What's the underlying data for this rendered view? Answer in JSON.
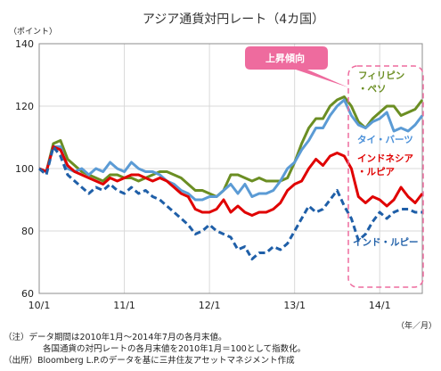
{
  "chart_data": {
    "type": "line",
    "title": "アジア通貨対円レート（4カ国）",
    "ylabel": "（ポイント）",
    "xlabel": "（年／月）",
    "ylim": [
      60,
      140
    ],
    "yticks": [
      60,
      80,
      100,
      120,
      140
    ],
    "xticks": [
      "10/1",
      "11/1",
      "12/1",
      "13/1",
      "14/1"
    ],
    "xtick_index": [
      0,
      12,
      24,
      36,
      48
    ],
    "x_count": 55,
    "grid": true,
    "callout": "上昇傾向",
    "series": [
      {
        "name": "フィリピン・ペソ",
        "label_lines": [
          "フィリピン",
          "・ペソ"
        ],
        "color": "#6b8e23",
        "style": "solid",
        "values": [
          100,
          99,
          108,
          109,
          103,
          101,
          99,
          98,
          97,
          96,
          98,
          98,
          97,
          97,
          96,
          97,
          98,
          99,
          99,
          98,
          97,
          95,
          93,
          93,
          92,
          91,
          93,
          98,
          98,
          97,
          96,
          97,
          96,
          96,
          96,
          97,
          102,
          108,
          113,
          116,
          116,
          120,
          122,
          123,
          120,
          115,
          113,
          116,
          118,
          120,
          120,
          117,
          118,
          119,
          122
        ]
      },
      {
        "name": "タイ・バーツ",
        "label_lines": [
          "タイ・バーツ"
        ],
        "color": "#5b9bd5",
        "style": "solid",
        "values": [
          100,
          99,
          107,
          107,
          100,
          99,
          100,
          98,
          100,
          99,
          102,
          100,
          99,
          102,
          100,
          99,
          99,
          98,
          96,
          95,
          93,
          92,
          90,
          90,
          91,
          91,
          93,
          95,
          92,
          95,
          91,
          92,
          92,
          93,
          96,
          100,
          102,
          106,
          109,
          113,
          113,
          117,
          120,
          122,
          117,
          114,
          113,
          115,
          116,
          118,
          112,
          113,
          112,
          114,
          117
        ]
      },
      {
        "name": "インドネシア・ルピア",
        "label_lines": [
          "インドネシア",
          "・ルピア"
        ],
        "color": "#e00000",
        "style": "solid",
        "values": [
          100,
          99,
          107,
          106,
          101,
          99,
          98,
          97,
          96,
          95,
          97,
          96,
          97,
          98,
          98,
          97,
          96,
          97,
          96,
          94,
          92,
          91,
          87,
          86,
          86,
          87,
          90,
          86,
          88,
          86,
          85,
          86,
          86,
          87,
          89,
          93,
          95,
          96,
          100,
          103,
          101,
          104,
          105,
          104,
          100,
          91,
          89,
          91,
          90,
          88,
          90,
          94,
          91,
          89,
          92
        ]
      },
      {
        "name": "インド・ルピー",
        "label_lines": [
          "インド・ルピー"
        ],
        "color": "#1f5fa8",
        "style": "dashed",
        "values": [
          100,
          98,
          107,
          104,
          98,
          96,
          94,
          92,
          94,
          93,
          95,
          93,
          92,
          94,
          92,
          93,
          91,
          90,
          88,
          86,
          84,
          82,
          79,
          80,
          82,
          80,
          79,
          78,
          74,
          75,
          71,
          73,
          73,
          75,
          74,
          76,
          80,
          84,
          88,
          86,
          87,
          90,
          93,
          88,
          84,
          77,
          79,
          83,
          86,
          84,
          86,
          87,
          87,
          86,
          86
        ]
      }
    ]
  },
  "notes": {
    "line1": "（注）データ期間は2010年1月～2014年7月の各月末値。",
    "line2": "各国通貨の対円レートの各月末値を2010年1月＝100として指数化。",
    "line3": "（出所）Bloomberg L.P.のデータを基に三井住友アセットマネジメント作成"
  }
}
